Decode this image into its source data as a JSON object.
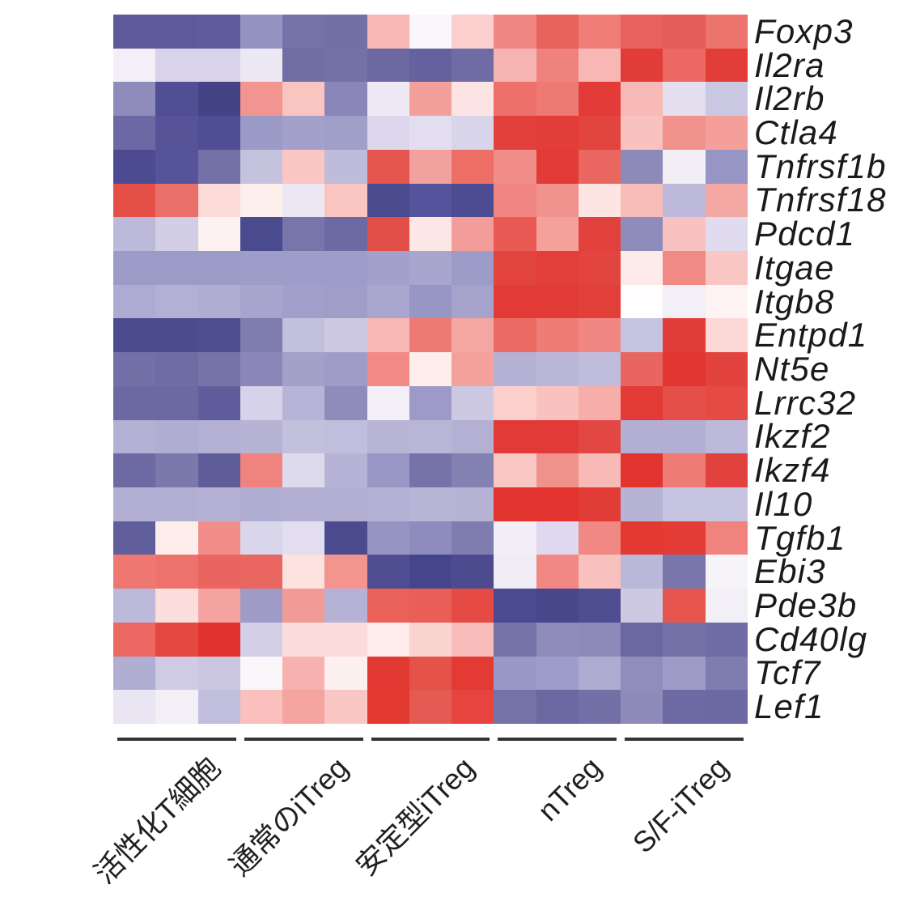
{
  "chart_data": {
    "type": "heatmap",
    "title": "",
    "rows": [
      "Foxp3",
      "Il2ra",
      "Il2rb",
      "Ctla4",
      "Tnfrsf1b",
      "Tnfrsf18",
      "Pdcd1",
      "Itgae",
      "Itgb8",
      "Entpd1",
      "Nt5e",
      "Lrrc32",
      "Ikzf2",
      "Ikzf4",
      "Il10",
      "Tgfb1",
      "Ebi3",
      "Pde3b",
      "Cd40lg",
      "Tcf7",
      "Lef1"
    ],
    "column_groups": [
      {
        "label": "活性化T細胞",
        "n_columns": 3
      },
      {
        "label": "通常のiTreg",
        "n_columns": 3
      },
      {
        "label": "安定型iTreg",
        "n_columns": 3
      },
      {
        "label": "nTreg",
        "n_columns": 3
      },
      {
        "label": "S/F-iTreg",
        "n_columns": 3
      }
    ],
    "n_columns": 15,
    "colormap": "diverging blue-white-red; slate blue = low relative expression, white = mid, red = high; no colorbar shown",
    "legend": "none",
    "grid": "off",
    "cell_colors": [
      [
        "#5c5a9b",
        "#5c5a9b",
        "#5e5c9d",
        "#9593c1",
        "#7572a8",
        "#7370a7",
        "#f9b7b4",
        "#fbf8fb",
        "#fbcfcd",
        "#f08782",
        "#e8625c",
        "#ef7d78",
        "#e8615e",
        "#e65c59",
        "#ed736d"
      ],
      [
        "#f3eef7",
        "#d8d3e9",
        "#d8d3e9",
        "#ebe7f3",
        "#716ea6",
        "#7471a8",
        "#6b68a2",
        "#63619e",
        "#6f6ca5",
        "#f7b3b1",
        "#f0827e",
        "#f8b7b4",
        "#e23c38",
        "#eb6863",
        "#e23d39"
      ],
      [
        "#8f8cbb",
        "#504f95",
        "#444386",
        "#f2948f",
        "#fac5c0",
        "#8a87b8",
        "#eee9f4",
        "#f4a09a",
        "#fde4e4",
        "#ed706b",
        "#ee7a74",
        "#e33b37",
        "#f8bab6",
        "#e3dfef",
        "#cbc8e3"
      ],
      [
        "#6b68a3",
        "#565399",
        "#4f4e94",
        "#9b99c6",
        "#a3a1cb",
        "#a09fc9",
        "#dcd7ec",
        "#e2ddef",
        "#d8d4e9",
        "#e4403b",
        "#e23d38",
        "#e24540",
        "#f9c2bf",
        "#f1928d",
        "#f49f99"
      ],
      [
        "#4c4b91",
        "#55539a",
        "#7471a9",
        "#c5c2de",
        "#f9c6c4",
        "#bebbdb",
        "#e4564e",
        "#f2a19e",
        "#ed6e65",
        "#f18d88",
        "#e23b37",
        "#ea6761",
        "#8d8aba",
        "#f1eef6",
        "#9795c3"
      ],
      [
        "#e45048",
        "#ea6f6a",
        "#fcdbd8",
        "#fdefec",
        "#ece8f3",
        "#fac4c0",
        "#4a4a8f",
        "#55539b",
        "#4d4c92",
        "#f08581",
        "#f2928d",
        "#fde5e3",
        "#f8bcb9",
        "#bcb9da",
        "#f4a8a4"
      ],
      [
        "#bdb9da",
        "#d2cee6",
        "#fdf1f1",
        "#4a4a8e",
        "#7875ab",
        "#6c69a3",
        "#e24f49",
        "#fde6e6",
        "#f29d9a",
        "#e95a55",
        "#f4a19c",
        "#e2423e",
        "#8f8cbc",
        "#f9c2c0",
        "#e0dbef"
      ],
      [
        "#9c9ac6",
        "#9c9ac6",
        "#9c9ac6",
        "#9e9cc8",
        "#9e9cc8",
        "#9e9cc8",
        "#a3a1cb",
        "#a8a6ce",
        "#9d9bc7",
        "#e24440",
        "#e23e3a",
        "#e24540",
        "#fdebe9",
        "#f08a85",
        "#f9c6c3"
      ],
      [
        "#aeabd2",
        "#b3b0d4",
        "#b0add3",
        "#a7a5ce",
        "#a2a0ca",
        "#a09ec9",
        "#a9a7cf",
        "#9896c4",
        "#a5a3cc",
        "#e23a36",
        "#e23a36",
        "#e23e3a",
        "#fffdfd",
        "#f2eff7",
        "#fdf4f3"
      ],
      [
        "#4c4b90",
        "#4c4b90",
        "#4e4d92",
        "#7f7caf",
        "#c3c0de",
        "#cdc9e3",
        "#f8b7b4",
        "#ee7a74",
        "#f4a6a2",
        "#ea6a64",
        "#ee7d77",
        "#f08782",
        "#c6c3e0",
        "#e23c38",
        "#fcd9d7"
      ],
      [
        "#7370a7",
        "#6f6ca5",
        "#7673a9",
        "#8a87b8",
        "#a3a0ca",
        "#9f9dc8",
        "#f18a85",
        "#fdeeec",
        "#f4a19c",
        "#b4b1d4",
        "#b9b6d7",
        "#c0bddc",
        "#e96560",
        "#e23731",
        "#e2433e"
      ],
      [
        "#6b68a2",
        "#6b68a2",
        "#605d9c",
        "#d6d2e9",
        "#b7b4d7",
        "#8f8cbc",
        "#f2eff7",
        "#9d9ac7",
        "#cdc9e3",
        "#fbd0cd",
        "#f9c2bf",
        "#f7aeaa",
        "#e23a35",
        "#e64f49",
        "#e54a44"
      ],
      [
        "#b3b0d4",
        "#b0add2",
        "#b3b0d4",
        "#b6b3d5",
        "#c3c0de",
        "#c1bedd",
        "#b7b4d6",
        "#b8b5d6",
        "#b3b0d4",
        "#e23a36",
        "#e23a36",
        "#e24743",
        "#b2afd3",
        "#b2afd3",
        "#bcb9da"
      ],
      [
        "#6c69a3",
        "#7b78ac",
        "#605d9b",
        "#f0837e",
        "#dedaee",
        "#b6b3d6",
        "#9997c5",
        "#7673aa",
        "#8380b2",
        "#fbc7c4",
        "#f0918c",
        "#f8bab6",
        "#e2342f",
        "#ee7b75",
        "#e2423e"
      ],
      [
        "#b2afd3",
        "#b2afd3",
        "#b4b1d4",
        "#b1aed3",
        "#b2afd3",
        "#b2afd3",
        "#b3b0d4",
        "#b7b4d6",
        "#b6b3d5",
        "#e2342f",
        "#e2332e",
        "#e23c37",
        "#b6b3d5",
        "#c6c3e0",
        "#c7c4e1"
      ],
      [
        "#615e9c",
        "#fdeeec",
        "#f28e89",
        "#d9d5eb",
        "#e2def0",
        "#4c4b90",
        "#9694c3",
        "#8e8cbd",
        "#7f7cb0",
        "#f1eef7",
        "#ded9ee",
        "#f08883",
        "#e33931",
        "#e23c35",
        "#f0837d"
      ],
      [
        "#ee7772",
        "#ed726d",
        "#ea655f",
        "#e96760",
        "#fde2e0",
        "#f3948f",
        "#4f4e93",
        "#45458b",
        "#4c4b90",
        "#efecf6",
        "#f18883",
        "#f9c1bd",
        "#bab7d8",
        "#7976ab",
        "#f7f4f9"
      ],
      [
        "#bcb9da",
        "#fcdedd",
        "#f5a3a0",
        "#9e9bc7",
        "#f29a95",
        "#b5b2d6",
        "#ea6159",
        "#e95f58",
        "#e54a44",
        "#4b4a90",
        "#48478c",
        "#4f4e93",
        "#cdc9e3",
        "#e6554e",
        "#f2eff7"
      ],
      [
        "#ec6862",
        "#e54741",
        "#e2322d",
        "#d3cfe7",
        "#fcdcdb",
        "#fcdcdb",
        "#fdecea",
        "#fbd3d1",
        "#f8bdbb",
        "#7673a8",
        "#8f8cbc",
        "#8d8aba",
        "#6a68a1",
        "#7471a8",
        "#6f6ca5"
      ],
      [
        "#b1aed3",
        "#cfcbe5",
        "#cac6e1",
        "#faf7fa",
        "#f7b2af",
        "#fdf1ef",
        "#e23a33",
        "#e6514a",
        "#e33a33",
        "#9a98c5",
        "#9e9cc8",
        "#aeabd1",
        "#908dbd",
        "#9e9bc7",
        "#7f7cb0"
      ],
      [
        "#e9e5f2",
        "#f2eff7",
        "#c2bfde",
        "#f9c0bd",
        "#f5a4a0",
        "#f9c6c4",
        "#e23930",
        "#e55a53",
        "#e74440",
        "#7572a8",
        "#6b68a2",
        "#7370a7",
        "#8e8bbb",
        "#6e6ba4",
        "#6b68a2"
      ]
    ]
  },
  "colors": {
    "background": "#ffffff",
    "group_underline": "#343434",
    "label_text": "#1a1a1a"
  }
}
